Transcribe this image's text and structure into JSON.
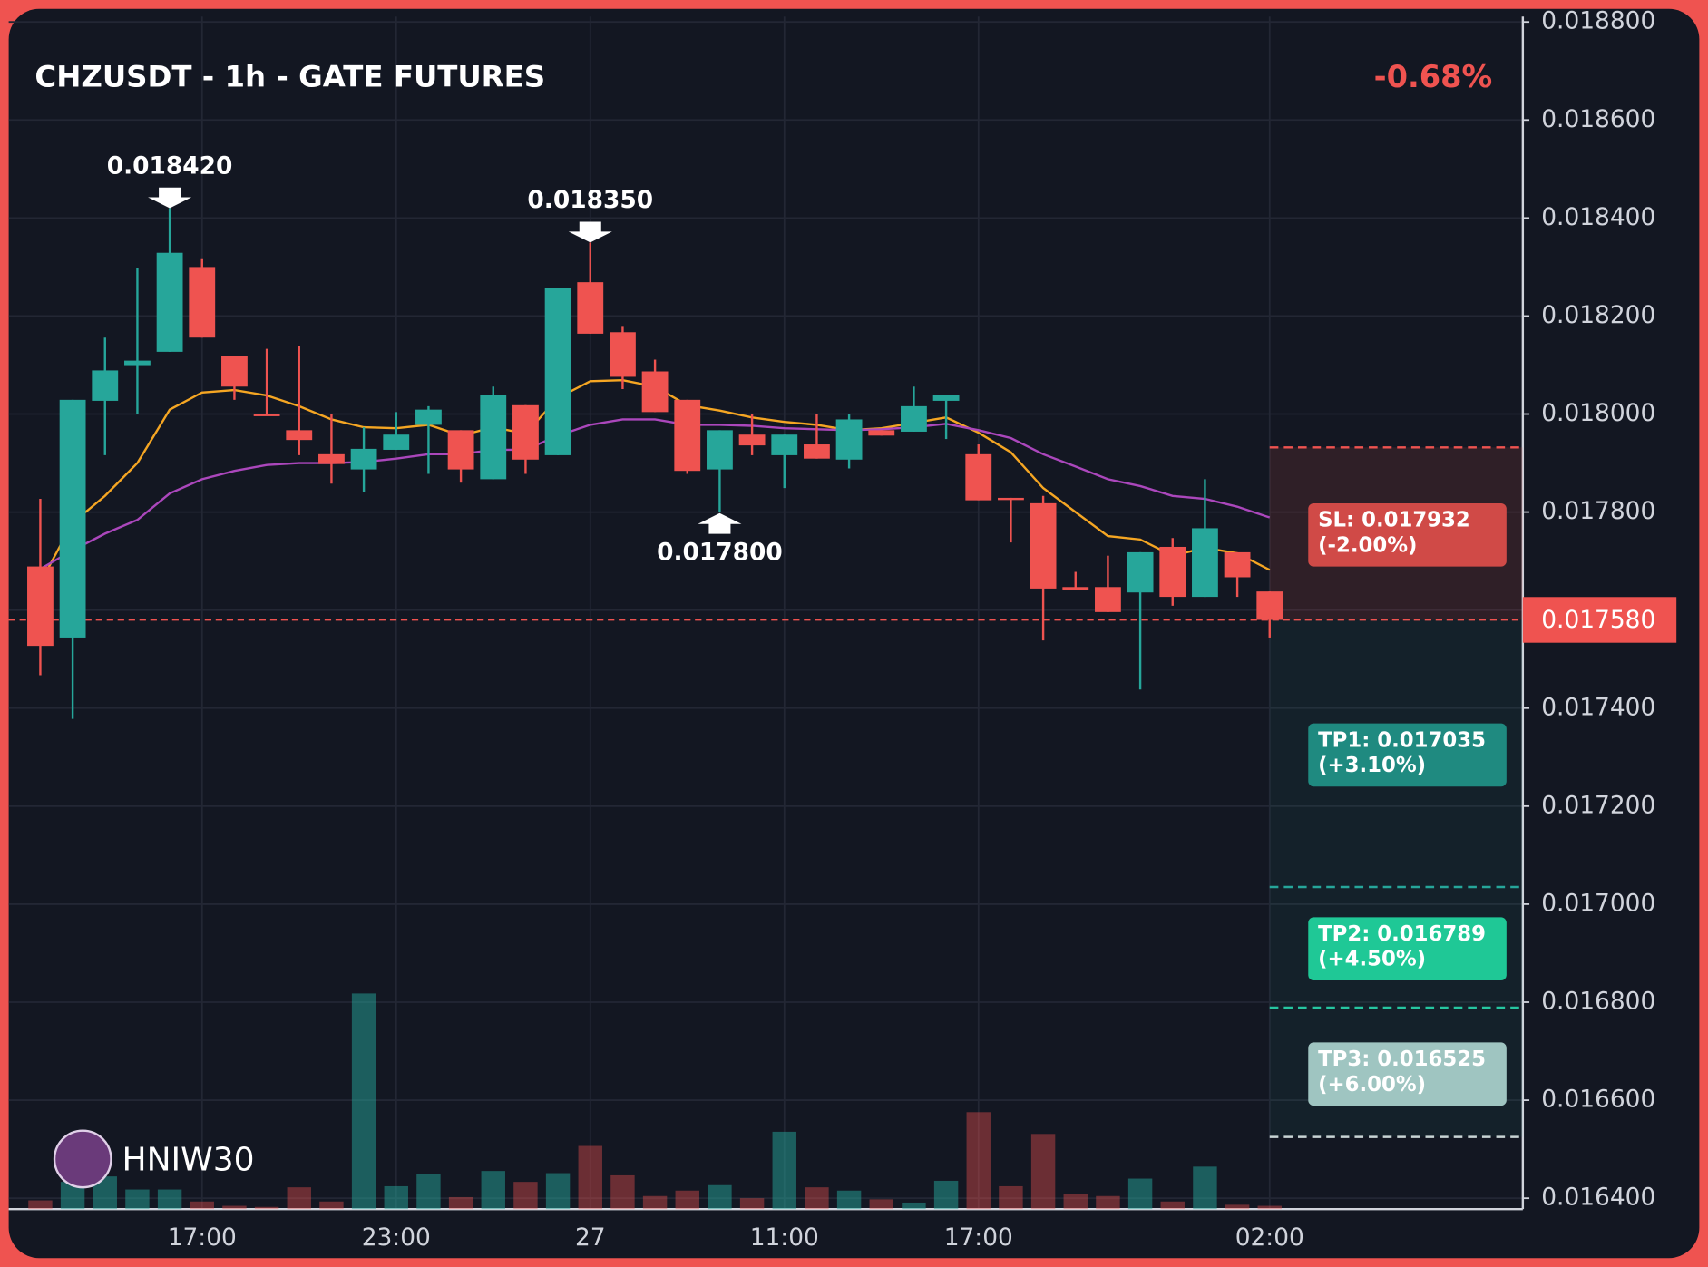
{
  "chart_data": {
    "type": "candlestick",
    "title": "CHZUSDT - 1h - GATE FUTURES",
    "change_label": "-0.68%",
    "watermark": "HNIW30",
    "categories": [
      null,
      null,
      null,
      null,
      null,
      "17:00",
      null,
      null,
      null,
      null,
      null,
      "23:00",
      null,
      null,
      null,
      null,
      null,
      "27",
      null,
      null,
      null,
      null,
      null,
      "11:00",
      null,
      null,
      null,
      null,
      null,
      "17:00",
      null,
      null,
      null,
      null,
      null,
      null,
      null,
      null,
      "02:00"
    ],
    "open": [
      0.017689,
      0.017544,
      0.018027,
      0.018098,
      0.018127,
      0.0183,
      0.018118,
      0.018,
      0.017967,
      0.017918,
      0.017887,
      0.017927,
      0.017978,
      0.017967,
      0.017867,
      0.018018,
      0.017916,
      0.018269,
      0.018167,
      0.018087,
      0.018029,
      0.017887,
      0.017958,
      0.017916,
      0.017938,
      0.017907,
      0.017967,
      0.017964,
      0.018027,
      0.017918,
      0.017829,
      0.017818,
      0.017647,
      0.017647,
      0.017636,
      0.017729,
      0.017627,
      0.017718,
      0.017638
    ],
    "high": [
      0.017827,
      0.018029,
      0.018156,
      0.018298,
      0.01842,
      0.018316,
      0.018118,
      0.018133,
      0.018138,
      0.018,
      0.017973,
      0.018004,
      0.018016,
      0.017967,
      0.018056,
      0.018018,
      0.018258,
      0.01835,
      0.018178,
      0.018111,
      0.018029,
      0.017967,
      0.018,
      0.017958,
      0.018,
      0.018,
      0.017967,
      0.018056,
      0.018038,
      0.017938,
      0.017829,
      0.017833,
      0.017678,
      0.017711,
      0.017718,
      0.017747,
      0.017867,
      0.017718,
      0.017638
    ],
    "low": [
      0.017467,
      0.017378,
      0.017916,
      0.018,
      0.018127,
      0.018156,
      0.018029,
      0.017998,
      0.017916,
      0.017858,
      0.01784,
      0.017927,
      0.017878,
      0.01786,
      0.017867,
      0.017878,
      0.017916,
      0.018164,
      0.018051,
      0.018004,
      0.017878,
      0.0178,
      0.017916,
      0.017849,
      0.017909,
      0.017889,
      0.017956,
      0.017964,
      0.017949,
      0.017824,
      0.017738,
      0.017538,
      0.017642,
      0.017596,
      0.017438,
      0.017609,
      0.017627,
      0.017627,
      0.017544
    ],
    "close": [
      0.017527,
      0.018029,
      0.018089,
      0.018109,
      0.018329,
      0.018156,
      0.018056,
      0.017998,
      0.017947,
      0.017898,
      0.017929,
      0.017958,
      0.018009,
      0.017887,
      0.018038,
      0.017907,
      0.018258,
      0.018164,
      0.018076,
      0.018004,
      0.017884,
      0.017967,
      0.017936,
      0.017958,
      0.017909,
      0.017989,
      0.017956,
      0.018016,
      0.018038,
      0.017824,
      0.017827,
      0.017644,
      0.017642,
      0.017596,
      0.017718,
      0.017627,
      0.017767,
      0.017667,
      0.01758
    ],
    "volume": [
      8,
      25,
      30,
      18,
      18,
      7,
      3,
      2,
      20,
      7,
      198,
      21,
      32,
      11,
      35,
      25,
      33,
      58,
      31,
      12,
      17,
      22,
      10,
      71,
      20,
      17,
      9,
      6,
      26,
      89,
      21,
      69,
      14,
      12,
      28,
      7,
      39,
      4,
      3
    ],
    "up_color": "#26a69a",
    "down_color": "#ef5350",
    "moving_averages": [
      {
        "color": "#f5a623",
        "values": [
          0.017656,
          0.017778,
          0.017833,
          0.0179,
          0.018009,
          0.018044,
          0.018049,
          0.018038,
          0.018016,
          0.017989,
          0.017973,
          0.017971,
          0.017978,
          0.017956,
          0.017973,
          0.01796,
          0.018033,
          0.018067,
          0.018069,
          0.018056,
          0.018018,
          0.018007,
          0.017993,
          0.017984,
          0.017978,
          0.017967,
          0.017971,
          0.017982,
          0.017993,
          0.017962,
          0.017922,
          0.017849,
          0.0178,
          0.017751,
          0.017744,
          0.017711,
          0.017727,
          0.017716,
          0.017682
        ]
      },
      {
        "color": "#ab47bc",
        "values": [
          0.017684,
          0.017722,
          0.017756,
          0.017784,
          0.017838,
          0.017867,
          0.017884,
          0.017896,
          0.0179,
          0.0179,
          0.017902,
          0.017909,
          0.017918,
          0.017918,
          0.017927,
          0.017927,
          0.017956,
          0.017978,
          0.017989,
          0.017989,
          0.017978,
          0.017978,
          0.017976,
          0.017971,
          0.017969,
          0.017967,
          0.017969,
          0.017973,
          0.01798,
          0.017967,
          0.017951,
          0.017918,
          0.017893,
          0.017867,
          0.017853,
          0.017833,
          0.017827,
          0.017811,
          0.017789
        ]
      }
    ],
    "peak_labels": [
      {
        "value": 0.01842,
        "label": "0.018420"
      },
      {
        "value": 0.01835,
        "label": "0.018350"
      }
    ],
    "trough_labels": [
      {
        "value": 0.0178,
        "label": "0.017800"
      }
    ],
    "last_price": {
      "value": 0.01758,
      "label": "0.017580"
    },
    "levels": [
      {
        "label": "SL: 0.017932",
        "note": "(-2.00%)",
        "value": 0.017932,
        "color": "#d04a47",
        "line_color": "#ef5350"
      },
      {
        "label": "TP1: 0.017035",
        "note": "(+3.10%)",
        "value": 0.017035,
        "color": "#1f8a80",
        "line_color": "#26a69a"
      },
      {
        "label": "TP2: 0.016789",
        "note": "(+4.50%)",
        "value": 0.016789,
        "color": "#1fc896",
        "line_color": "#26c6a0"
      },
      {
        "label": "TP3: 0.016525",
        "note": "(+6.00%)",
        "value": 0.016525,
        "color": "#9fc5c1",
        "line_color": "#c8d4d4"
      }
    ],
    "ylim": [
      0.0164,
      0.0188
    ],
    "yticks": [
      {
        "value": 0.0164,
        "label": "0.016400"
      },
      {
        "value": 0.0166,
        "label": "0.016600"
      },
      {
        "value": 0.0168,
        "label": "0.016800"
      },
      {
        "value": 0.017,
        "label": "0.017000"
      },
      {
        "value": 0.0172,
        "label": "0.017200"
      },
      {
        "value": 0.0174,
        "label": "0.017400"
      },
      {
        "value": 0.0176,
        "label": "0.017600"
      },
      {
        "value": 0.0178,
        "label": "0.017800"
      },
      {
        "value": 0.018,
        "label": "0.018000"
      },
      {
        "value": 0.0182,
        "label": "0.018200"
      },
      {
        "value": 0.0184,
        "label": "0.018400"
      },
      {
        "value": 0.0186,
        "label": "0.018600"
      },
      {
        "value": 0.0188,
        "label": "0.018800"
      }
    ],
    "grid": true
  }
}
